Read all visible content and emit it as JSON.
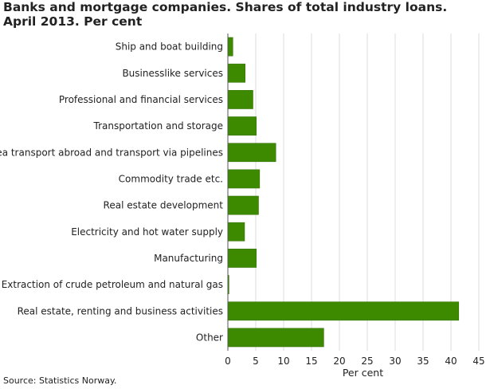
{
  "chart_data": {
    "type": "bar",
    "orientation": "horizontal",
    "title": "Banks and mortgage companies. Shares of total industry loans. April 2013. Per cent",
    "xlabel": "Per cent",
    "ylabel": "",
    "xlim": [
      0,
      45
    ],
    "xticks": [
      0,
      5,
      10,
      15,
      20,
      25,
      30,
      35,
      40,
      45
    ],
    "grid": "vertical",
    "legend": "none",
    "bar_color": "#3d8a00",
    "categories": [
      "Ship and boat building",
      "Businesslike services",
      "Professional and financial services",
      "Transportation and storage",
      "Sea transport abroad and transport via pipelines",
      "Commodity trade etc.",
      "Real estate development",
      "Electricity and hot water supply",
      "Manufacturing",
      "Extraction of crude petroleum and natural gas",
      "Real estate, renting and business activities",
      "Other"
    ],
    "values": [
      0.9,
      3.1,
      4.5,
      5.1,
      8.6,
      5.7,
      5.5,
      3.0,
      5.1,
      0.2,
      41.4,
      17.2
    ]
  },
  "source": "Source: Statistics Norway."
}
